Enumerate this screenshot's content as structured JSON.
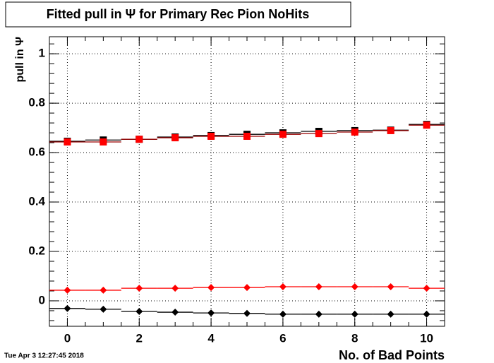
{
  "chart_data": {
    "type": "scatter",
    "title": "Fitted pull in  Ψ  for Primary Rec Pion NoHits",
    "y_label": "pull in  Ψ",
    "x_label": "No. of Bad Points",
    "timestamp": "Tue Apr  3 12:27:45 2018",
    "x": [
      0,
      1,
      2,
      3,
      4,
      5,
      6,
      7,
      8,
      9,
      10
    ],
    "series": [
      {
        "color": "#000000",
        "line_color": "#000000",
        "marker": "square",
        "values": [
          0.646,
          0.651,
          0.654,
          0.663,
          0.669,
          0.674,
          0.68,
          0.686,
          0.689,
          0.691,
          0.714
        ]
      },
      {
        "color": "#ff0000",
        "line_color": "#990000",
        "marker": "square",
        "values": [
          0.643,
          0.643,
          0.654,
          0.66,
          0.666,
          0.666,
          0.674,
          0.677,
          0.683,
          0.689,
          0.711
        ]
      },
      {
        "color": "#ff0000",
        "line_color": "#ff0000",
        "marker": "diamond",
        "values": [
          0.043,
          0.043,
          0.051,
          0.051,
          0.054,
          0.054,
          0.057,
          0.057,
          0.057,
          0.057,
          0.051
        ]
      },
      {
        "color": "#000000",
        "line_color": "#000000",
        "marker": "diamond",
        "values": [
          -0.031,
          -0.034,
          -0.043,
          -0.046,
          -0.049,
          -0.051,
          -0.054,
          -0.054,
          -0.054,
          -0.054,
          -0.054
        ]
      }
    ],
    "xlim": [
      -0.5,
      10.5
    ],
    "ylim": [
      -0.103,
      1.069
    ],
    "xticks": [
      0,
      2,
      4,
      6,
      8,
      10
    ],
    "yticks": [
      0,
      0.2,
      0.4,
      0.6,
      0.8,
      1
    ],
    "grid": true
  }
}
